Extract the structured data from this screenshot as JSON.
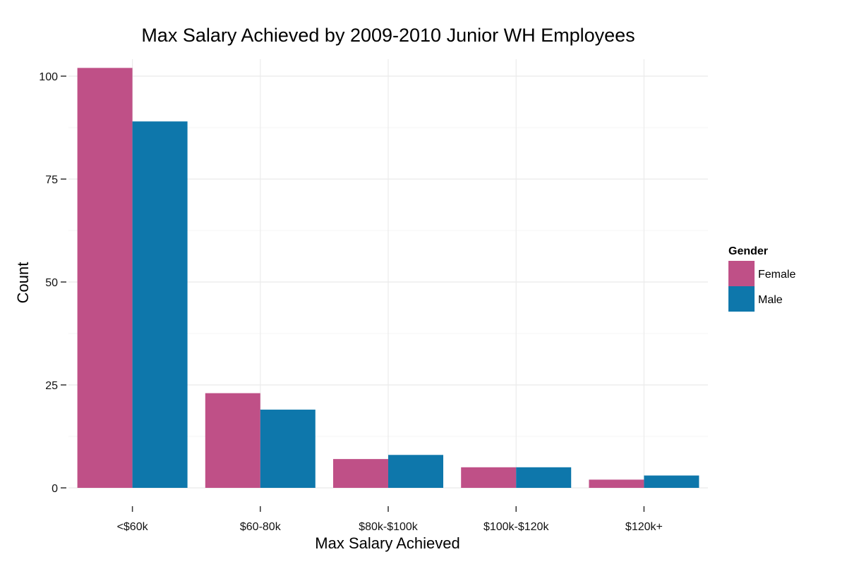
{
  "chart_data": {
    "type": "bar",
    "title": "Max Salary Achieved by 2009-2010 Junior WH Employees",
    "xlabel": "Max Salary Achieved",
    "ylabel": "Count",
    "categories": [
      "<$60k",
      "$60-80k",
      "$80k-$100k",
      "$100k-$120k",
      "$120k+"
    ],
    "series": [
      {
        "name": "Female",
        "color": "#bf5087",
        "values": [
          102,
          23,
          7,
          5,
          2
        ]
      },
      {
        "name": "Male",
        "color": "#0e77ab",
        "values": [
          89,
          19,
          8,
          5,
          3
        ]
      }
    ],
    "ylim": [
      0,
      103
    ],
    "yticks": [
      0,
      25,
      50,
      75,
      100
    ],
    "yticks_minor": [
      12.5,
      37.5,
      62.5,
      87.5
    ],
    "grid": true,
    "legend": {
      "title": "Gender",
      "position": "right"
    }
  }
}
